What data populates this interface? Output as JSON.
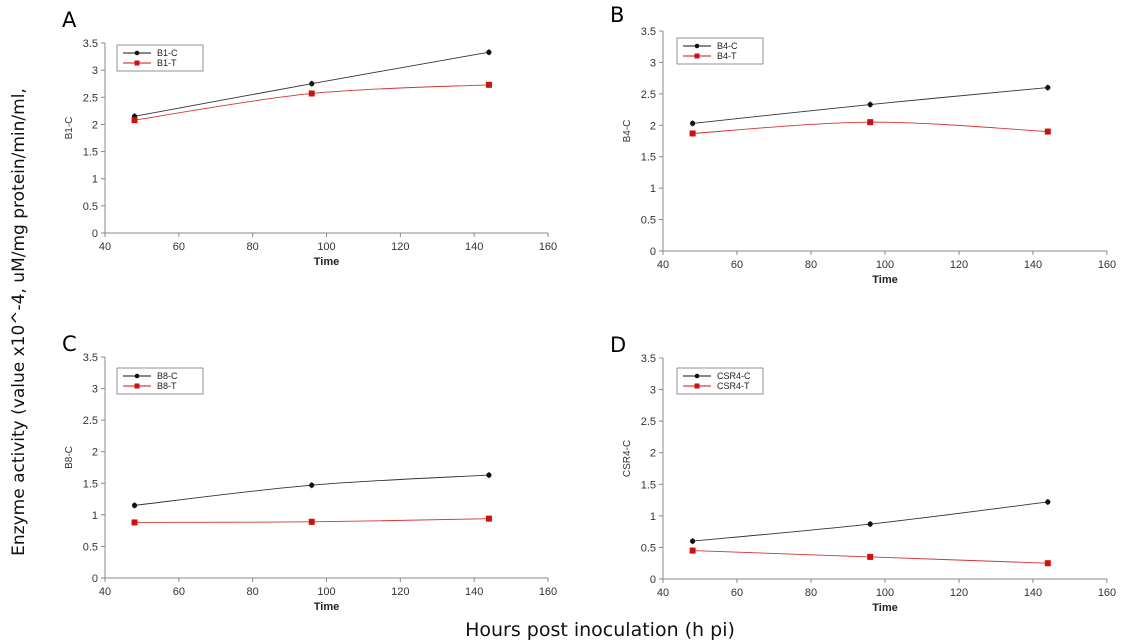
{
  "figure": {
    "y_label": "Enzyme activity (value x10^-4, uM/mg protein/min/ml,",
    "x_label": "Hours post inoculation (h pi)"
  },
  "colors": {
    "control": "#111111",
    "treatment": "#cc1111",
    "axis": "#888888"
  },
  "chart_data": [
    {
      "panel": "A",
      "type": "line",
      "xlabel": "Time",
      "ylabel": "B1-C",
      "xlim": [
        40,
        160
      ],
      "ylim": [
        0,
        3.5
      ],
      "xticks": [
        40,
        60,
        80,
        100,
        120,
        140,
        160
      ],
      "yticks": [
        0,
        0.5,
        1,
        1.5,
        2,
        2.5,
        3,
        3.5
      ],
      "ytick_labels": [
        "0",
        "0.5",
        "1",
        "1.5",
        "2",
        "2.5",
        "3",
        "3.5"
      ],
      "x": [
        48,
        96,
        144
      ],
      "series": [
        {
          "name": "B1-C",
          "values": [
            2.15,
            2.75,
            3.33
          ]
        },
        {
          "name": "B1-T",
          "values": [
            2.08,
            2.57,
            2.73
          ]
        }
      ]
    },
    {
      "panel": "B",
      "type": "line",
      "xlabel": "Time",
      "ylabel": "B4-C",
      "xlim": [
        40,
        160
      ],
      "ylim": [
        0,
        3.5
      ],
      "xticks": [
        40,
        60,
        80,
        100,
        120,
        140,
        160
      ],
      "yticks": [
        0,
        0.5,
        1,
        1.5,
        2,
        2.5,
        3,
        3.5
      ],
      "ytick_labels": [
        "0",
        "0.5",
        "1",
        "1.5",
        "2",
        "2.5",
        "3",
        "3.5"
      ],
      "x": [
        48,
        96,
        144
      ],
      "series": [
        {
          "name": "B4-C",
          "values": [
            2.03,
            2.33,
            2.6
          ]
        },
        {
          "name": "B4-T",
          "values": [
            1.87,
            2.05,
            1.9
          ]
        }
      ]
    },
    {
      "panel": "C",
      "type": "line",
      "xlabel": "Time",
      "ylabel": "B8-C",
      "xlim": [
        40,
        160
      ],
      "ylim": [
        0,
        3.5
      ],
      "xticks": [
        40,
        60,
        80,
        100,
        120,
        140,
        160
      ],
      "yticks": [
        0,
        0.5,
        1,
        1.5,
        2,
        2.5,
        3,
        3.5
      ],
      "ytick_labels": [
        "0",
        "0.5",
        "1",
        "1.5",
        "2",
        "2.5",
        "3",
        "3.5"
      ],
      "x": [
        48,
        96,
        144
      ],
      "series": [
        {
          "name": "B8-C",
          "values": [
            1.15,
            1.47,
            1.63
          ]
        },
        {
          "name": "B8-T",
          "values": [
            0.88,
            0.89,
            0.94
          ]
        }
      ]
    },
    {
      "panel": "D",
      "type": "line",
      "xlabel": "Time",
      "ylabel": "CSR4-C",
      "xlim": [
        40,
        160
      ],
      "ylim": [
        0,
        3.5
      ],
      "xticks": [
        40,
        60,
        80,
        100,
        120,
        140,
        160
      ],
      "yticks": [
        0,
        0.5,
        1,
        1.5,
        2,
        2.5,
        3,
        3.5
      ],
      "ytick_labels": [
        "0",
        "0.5",
        "1",
        "1.5",
        "2",
        "2.5",
        "3",
        "3.5"
      ],
      "x": [
        48,
        96,
        144
      ],
      "series": [
        {
          "name": "CSR4-C",
          "values": [
            0.6,
            0.87,
            1.22
          ]
        },
        {
          "name": "CSR4-T",
          "values": [
            0.45,
            0.35,
            0.25
          ]
        }
      ]
    }
  ]
}
